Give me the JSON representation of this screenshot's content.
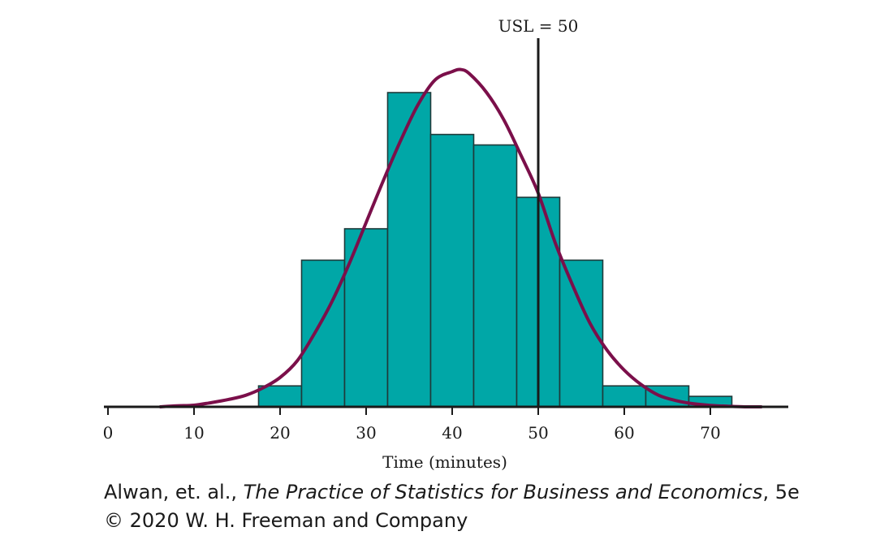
{
  "chart_data": {
    "type": "bar",
    "subtype": "histogram",
    "xlabel": "Time (minutes)",
    "ylabel": "",
    "xlim": [
      0,
      80
    ],
    "ylim": [
      0,
      16
    ],
    "x_ticks": [
      0,
      10,
      20,
      30,
      40,
      50,
      60,
      70
    ],
    "y_axis_shown": false,
    "grid": false,
    "bin_width": 5,
    "bins": [
      {
        "start": 17.5,
        "end": 22.5,
        "count": 1
      },
      {
        "start": 22.5,
        "end": 27.5,
        "count": 7
      },
      {
        "start": 27.5,
        "end": 32.5,
        "count": 8.5
      },
      {
        "start": 32.5,
        "end": 37.5,
        "count": 15
      },
      {
        "start": 37.5,
        "end": 42.5,
        "count": 13
      },
      {
        "start": 42.5,
        "end": 47.5,
        "count": 12.5
      },
      {
        "start": 47.5,
        "end": 52.5,
        "count": 10
      },
      {
        "start": 52.5,
        "end": 57.5,
        "count": 7
      },
      {
        "start": 57.5,
        "end": 62.5,
        "count": 1
      },
      {
        "start": 62.5,
        "end": 67.5,
        "count": 1
      },
      {
        "start": 67.5,
        "end": 72.5,
        "count": 0.5
      }
    ],
    "density_curve": {
      "x": [
        6,
        8,
        10,
        12,
        14,
        16,
        18,
        20,
        22,
        24,
        26,
        28,
        30,
        32,
        34,
        36,
        38,
        40,
        41,
        42,
        44,
        46,
        48,
        50,
        52,
        54,
        56,
        58,
        60,
        62,
        64,
        66,
        68,
        70,
        72,
        74,
        76
      ],
      "y": [
        0.0,
        0.05,
        0.08,
        0.2,
        0.35,
        0.55,
        0.9,
        1.4,
        2.2,
        3.5,
        5.0,
        6.8,
        8.8,
        10.8,
        12.7,
        14.4,
        15.6,
        16.0,
        16.1,
        15.9,
        15.0,
        13.7,
        12.0,
        10.2,
        7.8,
        5.8,
        4.0,
        2.7,
        1.75,
        1.05,
        0.55,
        0.3,
        0.15,
        0.07,
        0.03,
        0.0,
        0.0
      ],
      "color": "#7b0f4a"
    },
    "reference_line": {
      "x": 50,
      "label": "USL = 50",
      "color": "#1a1a1a"
    },
    "colors": {
      "bar_fill": "#00a7a7",
      "bar_stroke": "#1f3a3a",
      "axis": "#1a1a1a"
    }
  },
  "credit": {
    "authors": "Alwan, et. al., ",
    "book_title": "The Practice of Statistics for Business and Economics",
    "edition": ", 5e",
    "copyright": "© 2020 W. H. Freeman and Company"
  }
}
